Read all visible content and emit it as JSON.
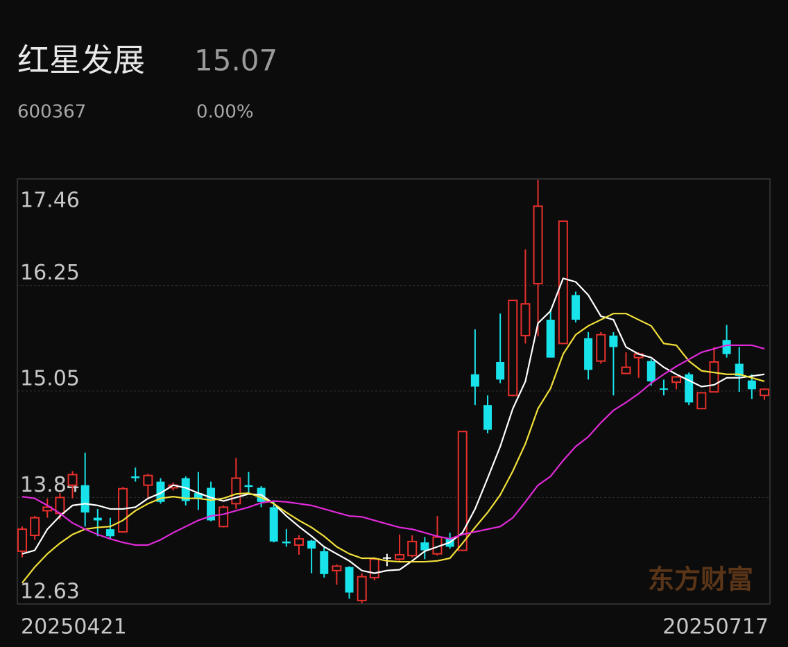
{
  "header": {
    "name": "红星发展",
    "price": "15.07",
    "code": "600367",
    "change": "0.00%",
    "watermark": "东方财富"
  },
  "chart_data": {
    "type": "candlestick",
    "categories": [
      "20250421",
      null,
      null,
      null,
      null,
      null,
      null,
      null,
      null,
      null,
      null,
      null,
      null,
      null,
      null,
      null,
      null,
      null,
      null,
      null,
      null,
      null,
      null,
      null,
      null,
      null,
      null,
      null,
      null,
      null,
      null,
      null,
      null,
      null,
      null,
      null,
      null,
      null,
      null,
      null,
      null,
      null,
      null,
      null,
      null,
      null,
      null,
      null,
      null,
      null,
      null,
      null,
      null,
      null,
      null,
      null,
      null,
      null,
      null,
      "20250717"
    ],
    "open": [
      13.23,
      13.41,
      13.69,
      13.66,
      13.98,
      13.98,
      13.61,
      13.48,
      13.45,
      14.08,
      13.98,
      14.02,
      13.95,
      14.06,
      13.89,
      13.95,
      13.51,
      13.77,
      13.98,
      13.95,
      13.73,
      13.34,
      13.3,
      13.35,
      13.23,
      13.01,
      13.05,
      12.67,
      12.93,
      13.16,
      13.14,
      13.18,
      13.33,
      13.2,
      13.37,
      13.24,
      15.24,
      14.89,
      15.38,
      15.0,
      15.68,
      16.27,
      15.86,
      15.59,
      16.14,
      15.65,
      15.39,
      15.68,
      15.25,
      15.43,
      15.39,
      15.08,
      15.15,
      15.24,
      14.85,
      15.04,
      15.63,
      15.36,
      15.17,
      15.0
    ],
    "high": [
      13.51,
      13.63,
      13.83,
      13.89,
      14.14,
      14.35,
      13.71,
      13.61,
      13.96,
      14.18,
      14.11,
      14.06,
      14.01,
      14.08,
      14.13,
      14.02,
      13.75,
      14.29,
      14.13,
      13.97,
      13.79,
      13.48,
      13.41,
      13.36,
      13.28,
      13.08,
      13.06,
      12.98,
      13.16,
      13.2,
      13.42,
      13.41,
      13.39,
      13.63,
      13.44,
      14.59,
      15.75,
      15.0,
      15.93,
      16.08,
      16.66,
      17.45,
      15.98,
      16.98,
      16.18,
      15.72,
      15.72,
      15.72,
      15.49,
      15.49,
      15.41,
      15.18,
      15.22,
      15.26,
      15.03,
      15.55,
      15.8,
      15.55,
      15.24,
      15.08
    ],
    "low": [
      13.16,
      13.36,
      13.61,
      13.59,
      13.83,
      13.51,
      13.4,
      13.37,
      13.44,
      14.02,
      13.84,
      13.77,
      13.92,
      13.75,
      13.7,
      13.57,
      13.5,
      13.71,
      13.89,
      13.73,
      13.33,
      13.28,
      13.19,
      12.98,
      12.93,
      12.85,
      12.69,
      12.64,
      12.9,
      13.06,
      13.12,
      13.16,
      13.14,
      13.18,
      13.26,
      13.23,
      14.89,
      14.57,
      15.14,
      14.99,
      15.59,
      15.67,
      15.43,
      15.59,
      15.83,
      15.18,
      15.36,
      15.0,
      15.24,
      15.2,
      15.11,
      15.0,
      15.07,
      14.89,
      14.85,
      15.04,
      15.43,
      15.04,
      14.96,
      14.95
    ],
    "close": [
      13.48,
      13.61,
      13.73,
      13.84,
      14.1,
      13.67,
      13.58,
      13.4,
      13.94,
      14.06,
      14.09,
      13.79,
      13.98,
      13.8,
      13.83,
      13.58,
      13.73,
      14.06,
      13.96,
      13.79,
      13.34,
      13.32,
      13.37,
      13.26,
      12.97,
      13.06,
      12.76,
      12.94,
      13.14,
      13.16,
      13.19,
      13.34,
      13.24,
      13.39,
      13.28,
      14.59,
      15.1,
      14.61,
      15.18,
      16.08,
      16.04,
      17.15,
      15.43,
      16.98,
      15.86,
      15.29,
      15.69,
      15.55,
      15.32,
      15.47,
      15.16,
      15.07,
      15.21,
      14.92,
      15.03,
      15.38,
      15.47,
      15.22,
      15.07,
      15.07
    ],
    "up_color": "#e8302c",
    "down_color": "#19e3ea",
    "flat_color": "#ffffff",
    "series": [
      {
        "color": "#ffffff",
        "values": [
          13.2,
          13.24,
          13.48,
          13.63,
          13.75,
          13.77,
          13.75,
          13.71,
          13.71,
          13.73,
          13.83,
          13.89,
          13.98,
          13.95,
          13.89,
          13.84,
          13.8,
          13.84,
          13.88,
          13.87,
          13.77,
          13.63,
          13.51,
          13.4,
          13.28,
          13.2,
          13.12,
          13.01,
          12.98,
          13.01,
          13.02,
          13.12,
          13.23,
          13.28,
          13.33,
          13.44,
          13.71,
          14.06,
          14.42,
          14.85,
          15.16,
          15.82,
          15.96,
          16.33,
          16.29,
          16.14,
          15.9,
          15.86,
          15.55,
          15.47,
          15.43,
          15.32,
          15.24,
          15.17,
          15.1,
          15.12,
          15.2,
          15.2,
          15.22,
          15.24
        ]
      },
      {
        "color": "#f2e03a",
        "values": [
          12.87,
          13.05,
          13.2,
          13.32,
          13.42,
          13.48,
          13.5,
          13.51,
          13.58,
          13.69,
          13.77,
          13.83,
          13.85,
          13.83,
          13.83,
          13.81,
          13.83,
          13.88,
          13.89,
          13.84,
          13.77,
          13.67,
          13.58,
          13.5,
          13.4,
          13.28,
          13.2,
          13.15,
          13.15,
          13.12,
          13.11,
          13.11,
          13.11,
          13.12,
          13.15,
          13.32,
          13.5,
          13.67,
          13.87,
          14.14,
          14.45,
          14.85,
          15.08,
          15.47,
          15.69,
          15.79,
          15.86,
          15.93,
          15.93,
          15.86,
          15.79,
          15.59,
          15.57,
          15.39,
          15.28,
          15.26,
          15.24,
          15.24,
          15.2,
          15.16
        ]
      },
      {
        "color": "#e02ad8",
        "values": [
          13.85,
          13.83,
          13.75,
          13.66,
          13.55,
          13.48,
          13.42,
          13.37,
          13.33,
          13.3,
          13.3,
          13.36,
          13.44,
          13.51,
          13.58,
          13.63,
          13.65,
          13.69,
          13.73,
          13.78,
          13.8,
          13.79,
          13.77,
          13.75,
          13.71,
          13.67,
          13.63,
          13.62,
          13.58,
          13.54,
          13.5,
          13.48,
          13.44,
          13.4,
          13.37,
          13.42,
          13.45,
          13.48,
          13.51,
          13.61,
          13.79,
          13.98,
          14.08,
          14.26,
          14.42,
          14.53,
          14.69,
          14.83,
          14.92,
          15.02,
          15.14,
          15.24,
          15.33,
          15.41,
          15.49,
          15.53,
          15.57,
          15.57,
          15.57,
          15.53
        ]
      }
    ],
    "ylim": [
      12.63,
      17.46
    ],
    "yticks": [
      17.46,
      16.25,
      15.05,
      13.84,
      12.63
    ],
    "grid": true
  }
}
